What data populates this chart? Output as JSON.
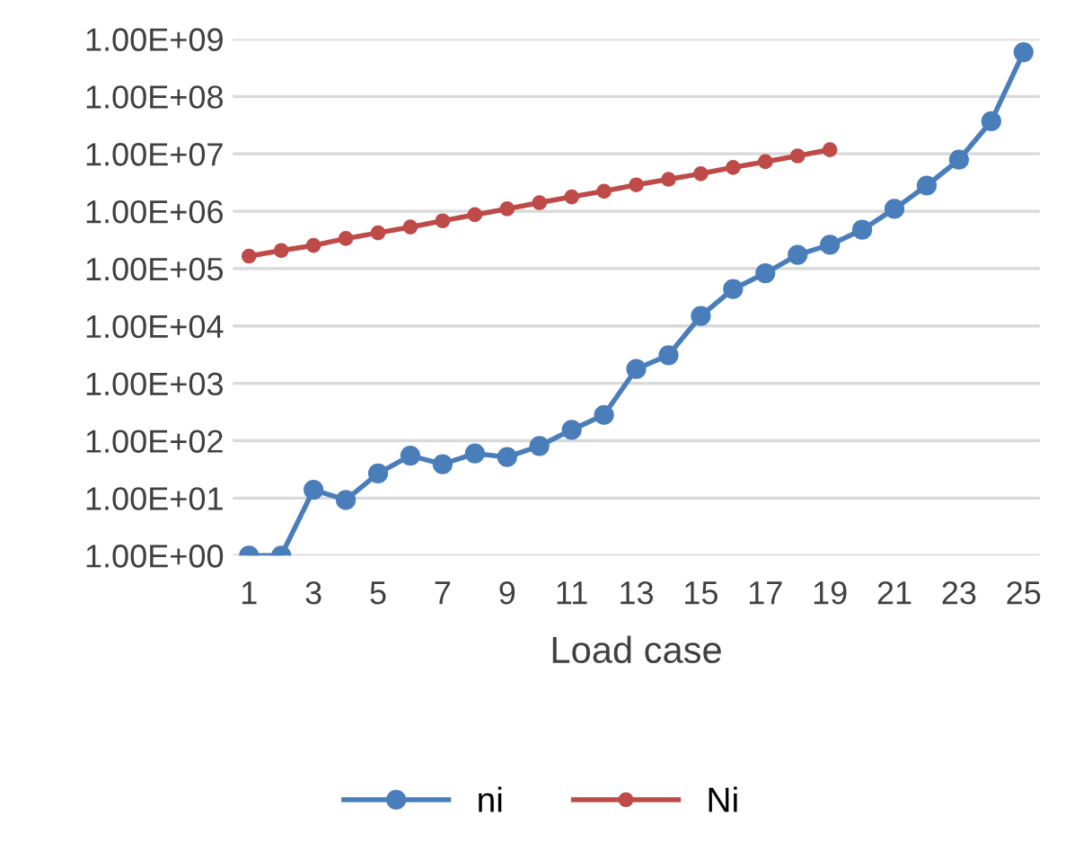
{
  "chart_data": {
    "type": "line",
    "xlabel": "Load case",
    "categories": [
      "1",
      null,
      "3",
      null,
      "5",
      null,
      "7",
      null,
      "9",
      null,
      "11",
      null,
      "13",
      null,
      "15",
      null,
      "17",
      null,
      "19",
      null,
      "21",
      null,
      "23",
      null,
      "25"
    ],
    "series": [
      {
        "name": "ni",
        "color": "#4a7ebb",
        "values": [
          1,
          1,
          14,
          9.3,
          27,
          55,
          39,
          60,
          52,
          81,
          155,
          282,
          1780,
          3100,
          15000,
          44000,
          83000,
          174000,
          260000,
          475000,
          1100000,
          2800000,
          7900000,
          37000000,
          590000000
        ]
      },
      {
        "name": "Ni",
        "color": "#be4b48",
        "values": [
          165000,
          207000,
          253000,
          335000,
          420000,
          530000,
          680000,
          870000,
          1100000,
          1410000,
          1780000,
          2230000,
          2880000,
          3600000,
          4500000,
          5800000,
          7300000,
          9200000,
          11800000,
          null,
          null,
          null,
          null,
          null,
          null
        ]
      }
    ],
    "log": "y",
    "ylim": [
      1,
      1000000000
    ],
    "yticks": [
      {
        "value": 1,
        "label": "1.00E+00"
      },
      {
        "value": 10,
        "label": "1.00E+01"
      },
      {
        "value": 100,
        "label": "1.00E+02"
      },
      {
        "value": 1000,
        "label": "1.00E+03"
      },
      {
        "value": 10000,
        "label": "1.00E+04"
      },
      {
        "value": 100000,
        "label": "1.00E+05"
      },
      {
        "value": 1000000,
        "label": "1.00E+06"
      },
      {
        "value": 10000000,
        "label": "1.00E+07"
      },
      {
        "value": 100000000,
        "label": "1.00E+08"
      },
      {
        "value": 1000000000,
        "label": "1.00E+09"
      }
    ],
    "grid": "y",
    "legend": "bottom",
    "marker": "circle",
    "line_style": "solid"
  }
}
